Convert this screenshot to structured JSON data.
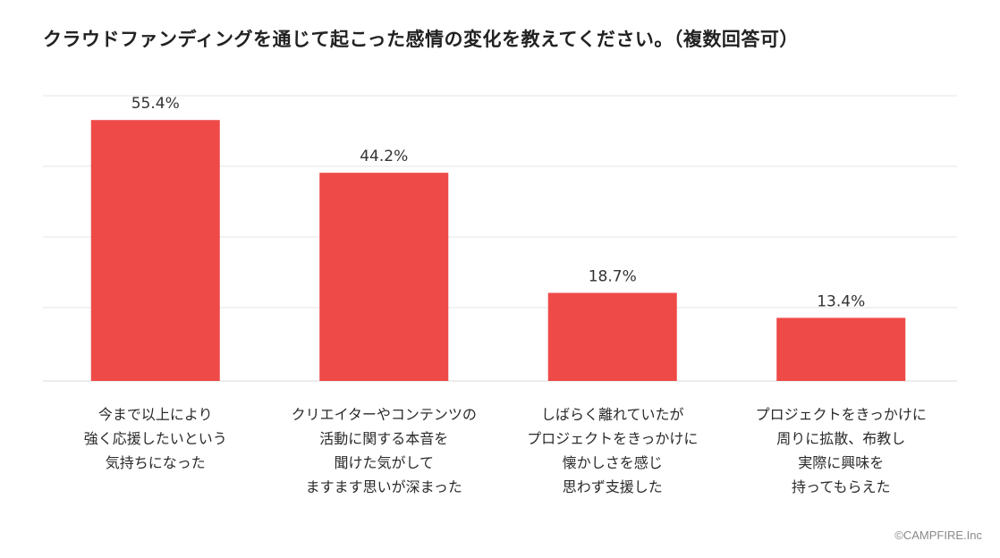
{
  "chart_data": {
    "type": "bar",
    "title": "クラウドファンディングを通じて起こった感情の変化を教えてください。（複数回答可）",
    "categories": [
      "今まで以上により\n強く応援したいという\n気持ちになった",
      "クリエイターやコンテンツの\n活動に関する本音を\n聞けた気がして\nますます思いが深まった",
      "しばらく離れていたが\nプロジェクトをきっかけに\n懐かしさを感じ\n思わず支援した",
      "プロジェクトをきっかけに\n周りに拡散、布教し\n実際に興味を\n持ってもらえた"
    ],
    "values": [
      55.4,
      44.2,
      18.7,
      13.4
    ],
    "value_labels": [
      "55.4%",
      "44.2%",
      "18.7%",
      "13.4%"
    ],
    "ylim": [
      0,
      60
    ],
    "grid": true,
    "bar_color": "#ee4a48",
    "grid_color": "#e6e6e6"
  },
  "credit": "©CAMPFIRE.Inc"
}
